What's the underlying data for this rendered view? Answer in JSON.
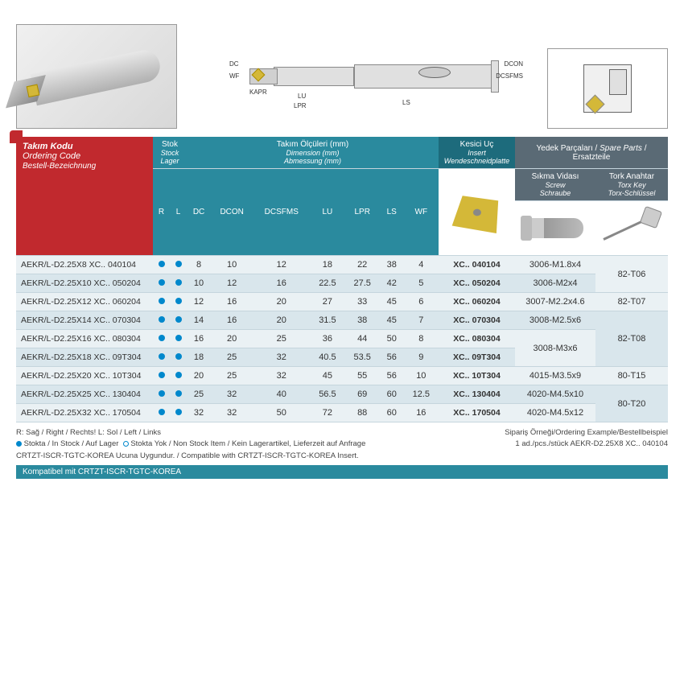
{
  "header": {
    "ordering_tr": "Takım Kodu",
    "ordering_en": "Ordering Code",
    "ordering_de": "Bestell-Bezeichnung",
    "stock_tr": "Stok",
    "stock_en": "Stock",
    "stock_de": "Lager",
    "dim_tr": "Takım Ölçüleri (mm)",
    "dim_en": "Dimension (mm)",
    "dim_de": "Abmessung (mm)",
    "insert_tr": "Kesici Uç",
    "insert_en": "Insert",
    "insert_de": "Wendeschneidplatte",
    "spare_tr": "Yedek Parçaları /",
    "spare_en": "Spare Parts",
    "spare_de": "/ Ersatzteile",
    "screw_tr": "Sıkma Vidası",
    "screw_en": "Screw",
    "screw_de": "Schraube",
    "torx_tr": "Tork Anahtar",
    "torx_en": "Torx Key",
    "torx_de": "Torx-Schlüssel"
  },
  "cols": {
    "r": "R",
    "l": "L",
    "dc": "DC",
    "dcon": "DCON",
    "dcsfms": "DCSFMS",
    "lu": "LU",
    "lpr": "LPR",
    "ls": "LS",
    "wf": "WF"
  },
  "rows": [
    {
      "code": "AEKR/L-D2.25X8  XC.. 040104",
      "dc": "8",
      "dcon": "10",
      "dcsfms": "12",
      "lu": "18",
      "lpr": "22",
      "ls": "38",
      "wf": "4",
      "insert": "XC.. 040104",
      "screw": "3006-M1.8x4"
    },
    {
      "code": "AEKR/L-D2.25X10 XC.. 050204",
      "dc": "10",
      "dcon": "12",
      "dcsfms": "16",
      "lu": "22.5",
      "lpr": "27.5",
      "ls": "42",
      "wf": "5",
      "insert": "XC.. 050204",
      "screw": "3006-M2x4"
    },
    {
      "code": "AEKR/L-D2.25X12 XC.. 060204",
      "dc": "12",
      "dcon": "16",
      "dcsfms": "20",
      "lu": "27",
      "lpr": "33",
      "ls": "45",
      "wf": "6",
      "insert": "XC.. 060204",
      "screw": "3007-M2.2x4.6"
    },
    {
      "code": "AEKR/L-D2.25X14 XC.. 070304",
      "dc": "14",
      "dcon": "16",
      "dcsfms": "20",
      "lu": "31.5",
      "lpr": "38",
      "ls": "45",
      "wf": "7",
      "insert": "XC.. 070304",
      "screw": "3008-M2.5x6"
    },
    {
      "code": "AEKR/L-D2.25X16 XC.. 080304",
      "dc": "16",
      "dcon": "20",
      "dcsfms": "25",
      "lu": "36",
      "lpr": "44",
      "ls": "50",
      "wf": "8",
      "insert": "XC.. 080304",
      "screw": "3008-M3x6"
    },
    {
      "code": "AEKR/L-D2.25X18 XC.. 09T304",
      "dc": "18",
      "dcon": "25",
      "dcsfms": "32",
      "lu": "40.5",
      "lpr": "53.5",
      "ls": "56",
      "wf": "9",
      "insert": "XC.. 09T304",
      "screw": ""
    },
    {
      "code": "AEKR/L-D2.25X20 XC.. 10T304",
      "dc": "20",
      "dcon": "25",
      "dcsfms": "32",
      "lu": "45",
      "lpr": "55",
      "ls": "56",
      "wf": "10",
      "insert": "XC.. 10T304",
      "screw": "4015-M3.5x9"
    },
    {
      "code": "AEKR/L-D2.25X25 XC.. 130404",
      "dc": "25",
      "dcon": "32",
      "dcsfms": "40",
      "lu": "56.5",
      "lpr": "69",
      "ls": "60",
      "wf": "12.5",
      "insert": "XC.. 130404",
      "screw": "4020-M4.5x10"
    },
    {
      "code": "AEKR/L-D2.25X32 XC.. 170504",
      "dc": "32",
      "dcon": "32",
      "dcsfms": "50",
      "lu": "72",
      "lpr": "88",
      "ls": "60",
      "wf": "16",
      "insert": "XC.. 170504",
      "screw": "4020-M4.5x12"
    }
  ],
  "torx": [
    "82-T06",
    "82-T07",
    "82-T08",
    "80-T15",
    "80-T20"
  ],
  "footer": {
    "legend1": "R: Sağ / Right / Rechts!   L: Sol / Left / Links",
    "stock_in": "Stokta / In Stock / Auf Lager",
    "stock_out": "Stokta Yok / Non Stock Item / Kein Lagerartikel, Lieferzeit auf Anfrage",
    "compat": "CRTZT-ISCR-TGTC-KOREA Ucuna Uygundur. / Compatible with CRTZT-ISCR-TGTC-KOREA Insert.",
    "example_lbl": "Sipariş Örneği/Ordering Example/Bestellbeispiel",
    "example_val": "1 ad./pcs./stück  AEKR-D2.25X8 XC.. 040104",
    "bar": "Kompatibel mit CRTZT-ISCR-TGTC-KOREA"
  },
  "diag": {
    "dc": "DC",
    "wf": "WF",
    "kapr": "KAPR",
    "lu": "LU",
    "lpr": "LPR",
    "ls": "LS",
    "dcon": "DCON",
    "dcsfms": "DCSFMS"
  }
}
